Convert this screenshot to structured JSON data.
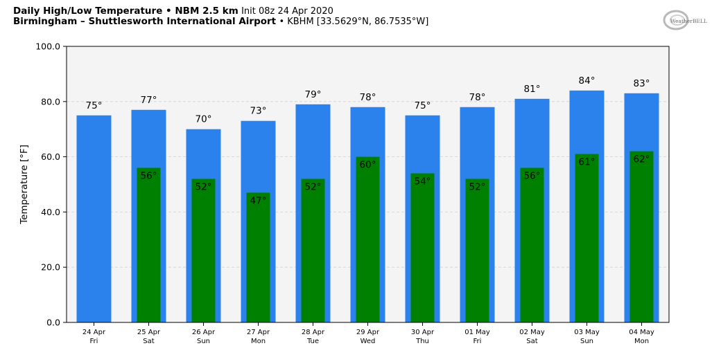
{
  "header": {
    "title_bold": "Daily High/Low Temperature • NBM 2.5 km",
    "title_init": "Init 08z 24 Apr 2020",
    "station_bold": "Birmingham – Shuttlesworth International Airport",
    "station_info": "• KBHM [33.5629°N, 86.7535°W]"
  },
  "logo": {
    "text": "WeatherBELL",
    "icon": "weatherbell-swirl-logo"
  },
  "chart_data": {
    "type": "bar",
    "ylabel": "Temperature [°F]",
    "ylim": [
      0,
      100
    ],
    "yticks": [
      "0.0",
      "20.0",
      "40.0",
      "60.0",
      "80.0",
      "100.0"
    ],
    "categories": [
      {
        "date": "24 Apr",
        "day": "Fri"
      },
      {
        "date": "25 Apr",
        "day": "Sat"
      },
      {
        "date": "26 Apr",
        "day": "Sun"
      },
      {
        "date": "27 Apr",
        "day": "Mon"
      },
      {
        "date": "28 Apr",
        "day": "Tue"
      },
      {
        "date": "29 Apr",
        "day": "Wed"
      },
      {
        "date": "30 Apr",
        "day": "Thu"
      },
      {
        "date": "01 May",
        "day": "Fri"
      },
      {
        "date": "02 May",
        "day": "Sat"
      },
      {
        "date": "03 May",
        "day": "Sun"
      },
      {
        "date": "04 May",
        "day": "Mon"
      }
    ],
    "series": [
      {
        "color": "#2b82ed",
        "values": [
          75,
          77,
          70,
          73,
          79,
          78,
          75,
          78,
          81,
          84,
          83
        ],
        "labels": [
          "75°",
          "77°",
          "70°",
          "73°",
          "79°",
          "78°",
          "75°",
          "78°",
          "81°",
          "84°",
          "83°"
        ]
      },
      {
        "color": "#008000",
        "values": [
          null,
          56,
          52,
          47,
          52,
          60,
          54,
          52,
          56,
          61,
          62
        ],
        "labels": [
          "",
          "56°",
          "52°",
          "47°",
          "52°",
          "60°",
          "54°",
          "52°",
          "56°",
          "61°",
          "62°"
        ]
      }
    ],
    "grid": true,
    "plot_background": "#f4f4f4"
  }
}
